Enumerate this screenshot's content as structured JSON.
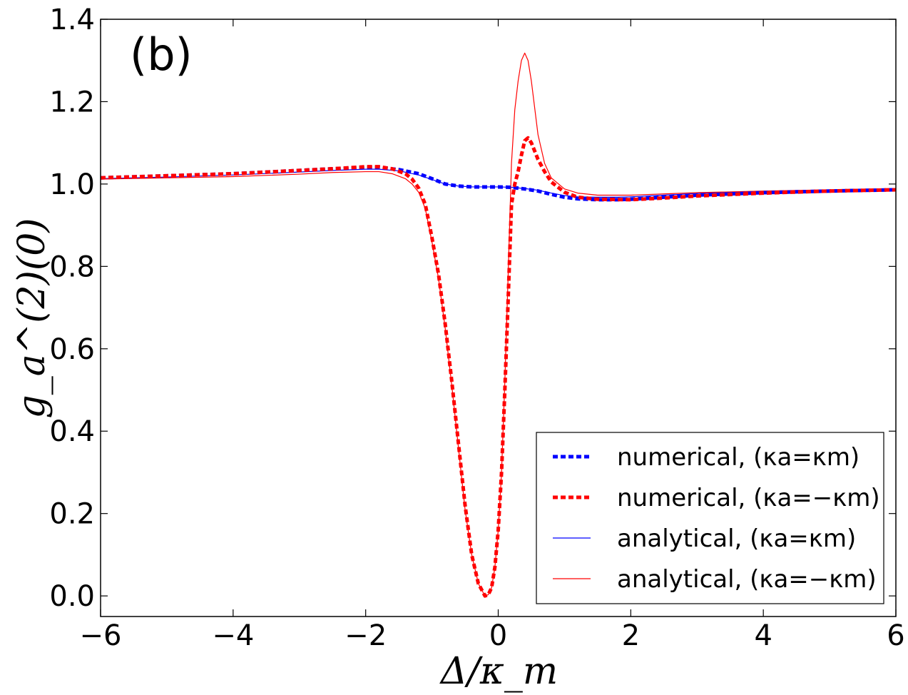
{
  "chart_data": {
    "type": "line",
    "title": "",
    "panel_label": "(b)",
    "xlabel": "Δ/κ_m",
    "ylabel": "g_a^(2)(0)",
    "xlim": [
      -6,
      6
    ],
    "ylim": [
      -0.05,
      1.4
    ],
    "xticks": [
      -6,
      -4,
      -2,
      0,
      2,
      4,
      6
    ],
    "xtick_labels": [
      "−6",
      "−4",
      "−2",
      "0",
      "2",
      "4",
      "6"
    ],
    "yticks": [
      0.0,
      0.2,
      0.4,
      0.6,
      0.8,
      1.0,
      1.2,
      1.4
    ],
    "ytick_labels": [
      "0.0",
      "0.2",
      "0.4",
      "0.6",
      "0.8",
      "1.0",
      "1.2",
      "1.4"
    ],
    "grid": false,
    "legend_position": "bottom-right",
    "series": [
      {
        "name": "numerical,  (κa=κm)",
        "color": "#0000ff",
        "style": "dashed-thick",
        "x": [
          -6,
          -5,
          -4,
          -3,
          -2.5,
          -2,
          -1.8,
          -1.5,
          -1.2,
          -1.0,
          -0.8,
          -0.6,
          -0.4,
          -0.2,
          0,
          0.2,
          0.4,
          0.6,
          0.8,
          1.0,
          1.2,
          1.5,
          1.8,
          2,
          2.5,
          3,
          4,
          5,
          6
        ],
        "y": [
          1.015,
          1.02,
          1.025,
          1.033,
          1.037,
          1.04,
          1.04,
          1.035,
          1.025,
          1.013,
          1.0,
          0.995,
          0.993,
          0.993,
          0.993,
          0.992,
          0.988,
          0.983,
          0.975,
          0.968,
          0.964,
          0.962,
          0.962,
          0.963,
          0.968,
          0.973,
          0.979,
          0.983,
          0.986
        ]
      },
      {
        "name": "numerical, (κa=−κm)",
        "color": "#ff0000",
        "style": "dashed-thick",
        "x": [
          -6,
          -5,
          -4,
          -3,
          -2.5,
          -2,
          -1.8,
          -1.6,
          -1.4,
          -1.3,
          -1.2,
          -1.1,
          -1.0,
          -0.9,
          -0.8,
          -0.7,
          -0.6,
          -0.5,
          -0.4,
          -0.3,
          -0.2,
          -0.15,
          -0.1,
          -0.05,
          0,
          0.05,
          0.1,
          0.15,
          0.2,
          0.25,
          0.3,
          0.35,
          0.4,
          0.45,
          0.5,
          0.6,
          0.7,
          0.8,
          1.0,
          1.2,
          1.5,
          2,
          2.5,
          3,
          4,
          5,
          6
        ],
        "y": [
          1.015,
          1.02,
          1.025,
          1.033,
          1.037,
          1.042,
          1.042,
          1.037,
          1.025,
          1.012,
          0.99,
          0.95,
          0.87,
          0.78,
          0.66,
          0.52,
          0.37,
          0.22,
          0.1,
          0.03,
          0.0,
          0.003,
          0.02,
          0.07,
          0.16,
          0.3,
          0.5,
          0.72,
          0.95,
          1.0,
          1.03,
          1.07,
          1.105,
          1.112,
          1.1,
          1.06,
          1.03,
          1.005,
          0.98,
          0.968,
          0.963,
          0.962,
          0.966,
          0.971,
          0.978,
          0.983,
          0.986
        ]
      },
      {
        "name": "analytical, (κa=κm)",
        "color": "#0000ff",
        "style": "solid-thin",
        "x": [
          -6,
          -5,
          -4,
          -3,
          -2.5,
          -2,
          -1.8,
          -1.5,
          -1.2,
          -1.0,
          -0.8,
          -0.6,
          -0.4,
          -0.2,
          0,
          0.2,
          0.4,
          0.6,
          0.8,
          1.0,
          1.2,
          1.5,
          1.8,
          2,
          2.5,
          3,
          4,
          5,
          6
        ],
        "y": [
          1.013,
          1.017,
          1.022,
          1.029,
          1.033,
          1.036,
          1.036,
          1.032,
          1.022,
          1.011,
          1.0,
          0.995,
          0.993,
          0.993,
          0.993,
          0.992,
          0.989,
          0.985,
          0.978,
          0.972,
          0.969,
          0.968,
          0.968,
          0.969,
          0.973,
          0.977,
          0.982,
          0.985,
          0.988
        ]
      },
      {
        "name": "analytical, (κa=−κm)",
        "color": "#ff0000",
        "style": "solid-thin",
        "x": [
          -6,
          -5,
          -4,
          -3,
          -2.5,
          -2,
          -1.8,
          -1.6,
          -1.4,
          -1.3,
          -1.2,
          -1.1,
          -1.0,
          -0.9,
          -0.8,
          -0.7,
          -0.6,
          -0.5,
          -0.4,
          -0.3,
          -0.2,
          -0.15,
          -0.1,
          -0.05,
          0,
          0.05,
          0.1,
          0.15,
          0.2,
          0.25,
          0.3,
          0.35,
          0.4,
          0.45,
          0.5,
          0.6,
          0.7,
          0.8,
          1.0,
          1.2,
          1.5,
          2,
          2.5,
          3,
          4,
          5,
          6
        ],
        "y": [
          1.012,
          1.015,
          1.018,
          1.024,
          1.028,
          1.03,
          1.03,
          1.025,
          1.013,
          1.0,
          0.98,
          0.94,
          0.86,
          0.77,
          0.65,
          0.51,
          0.36,
          0.21,
          0.1,
          0.03,
          0.0,
          0.003,
          0.02,
          0.07,
          0.16,
          0.3,
          0.52,
          0.78,
          1.05,
          1.18,
          1.25,
          1.3,
          1.318,
          1.3,
          1.25,
          1.12,
          1.05,
          1.015,
          0.988,
          0.978,
          0.973,
          0.973,
          0.976,
          0.979,
          0.983,
          0.986,
          0.989
        ]
      }
    ]
  }
}
